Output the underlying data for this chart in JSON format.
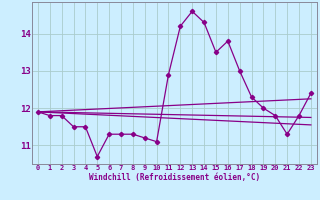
{
  "title": "",
  "xlabel": "Windchill (Refroidissement éolien,°C)",
  "ylabel": "",
  "background_color": "#cceeff",
  "grid_color": "#aacccc",
  "line_color": "#880088",
  "spine_color": "#888899",
  "xlim": [
    -0.5,
    23.5
  ],
  "ylim": [
    10.5,
    14.85
  ],
  "yticks": [
    11,
    12,
    13,
    14
  ],
  "xticks": [
    0,
    1,
    2,
    3,
    4,
    5,
    6,
    7,
    8,
    9,
    10,
    11,
    12,
    13,
    14,
    15,
    16,
    17,
    18,
    19,
    20,
    21,
    22,
    23
  ],
  "series": {
    "main": {
      "x": [
        0,
        1,
        2,
        3,
        4,
        5,
        6,
        7,
        8,
        9,
        10,
        11,
        12,
        13,
        14,
        15,
        16,
        17,
        18,
        19,
        20,
        21,
        22,
        23
      ],
      "y": [
        11.9,
        11.8,
        11.8,
        11.5,
        11.5,
        10.7,
        11.3,
        11.3,
        11.3,
        11.2,
        11.1,
        12.9,
        14.2,
        14.6,
        14.3,
        13.5,
        13.8,
        13.0,
        12.3,
        12.0,
        11.8,
        11.3,
        11.8,
        12.4
      ]
    },
    "trend1": {
      "x": [
        0,
        23
      ],
      "y": [
        11.9,
        11.75
      ]
    },
    "trend2": {
      "x": [
        0,
        23
      ],
      "y": [
        11.9,
        11.55
      ]
    },
    "trend3": {
      "x": [
        0,
        23
      ],
      "y": [
        11.9,
        12.25
      ]
    }
  }
}
